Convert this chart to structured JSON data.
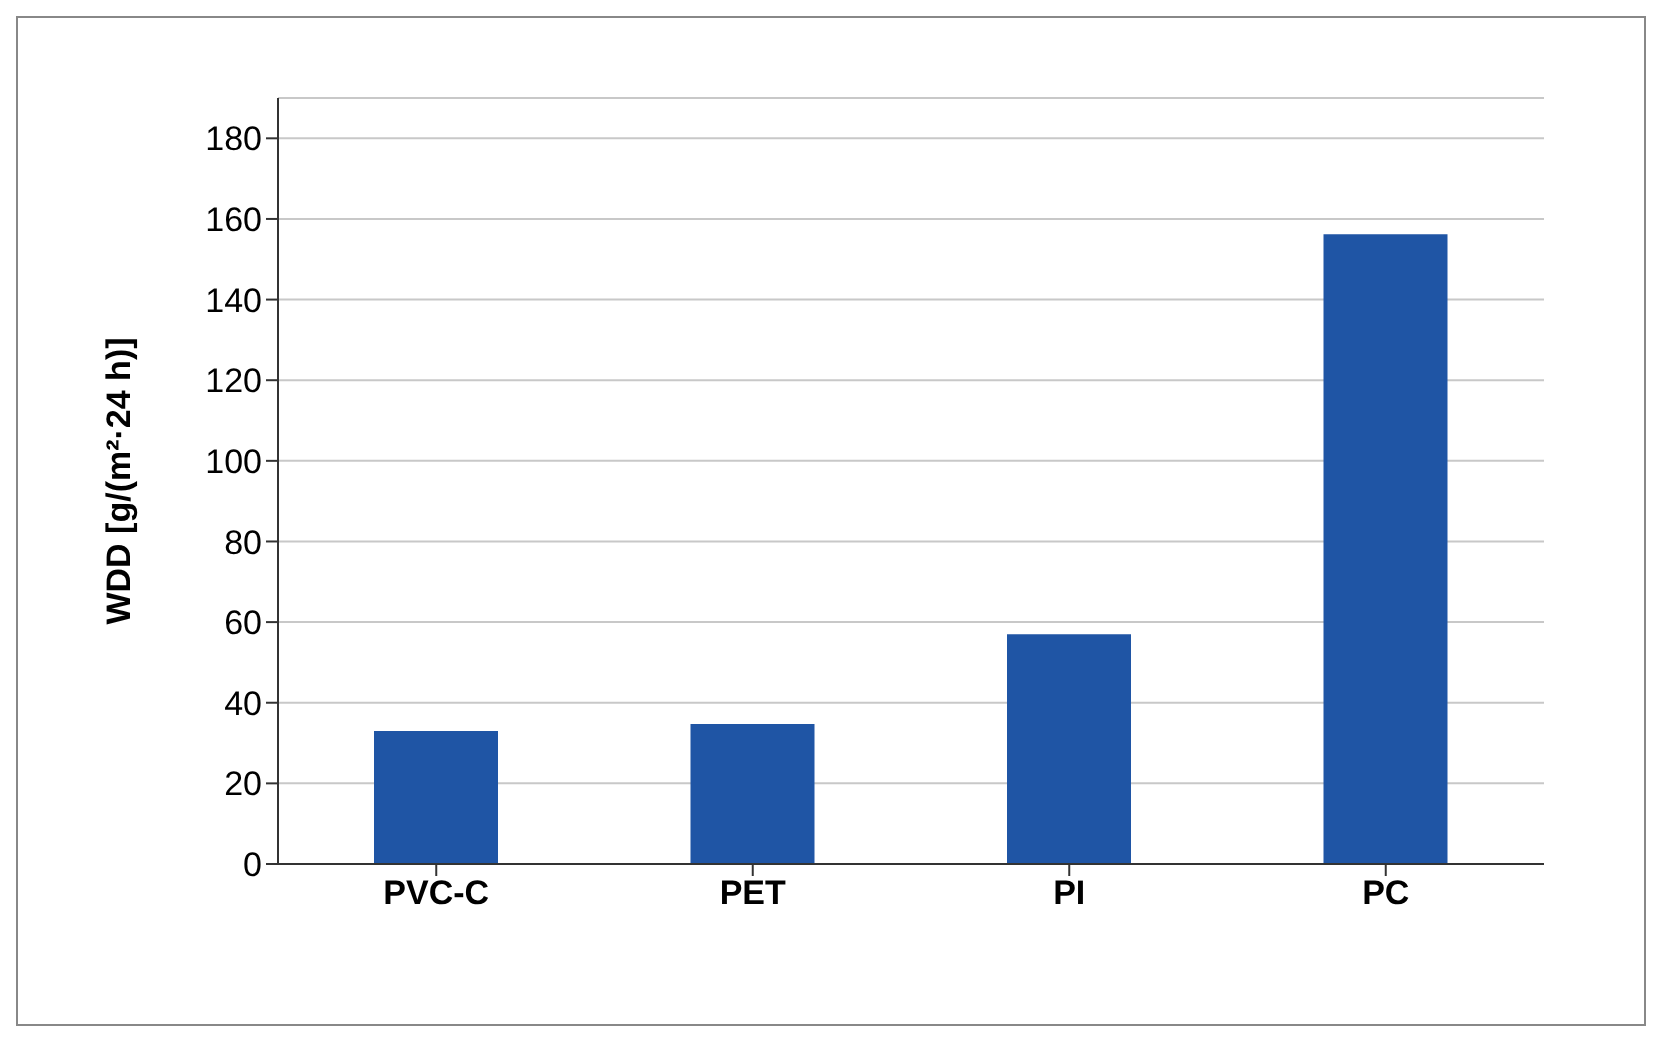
{
  "chart_data": {
    "type": "bar",
    "ylabel": "WDD [g/(m²·24 h)]",
    "categories": [
      "PVC-C",
      "PET",
      "PI",
      "PC"
    ],
    "values": [
      33,
      34.7,
      57,
      156.2
    ],
    "color": "#1f55a5",
    "ylim": [
      0,
      190
    ],
    "yticks": [
      0,
      20,
      40,
      60,
      80,
      100,
      120,
      140,
      160,
      180
    ],
    "grid": "y"
  }
}
